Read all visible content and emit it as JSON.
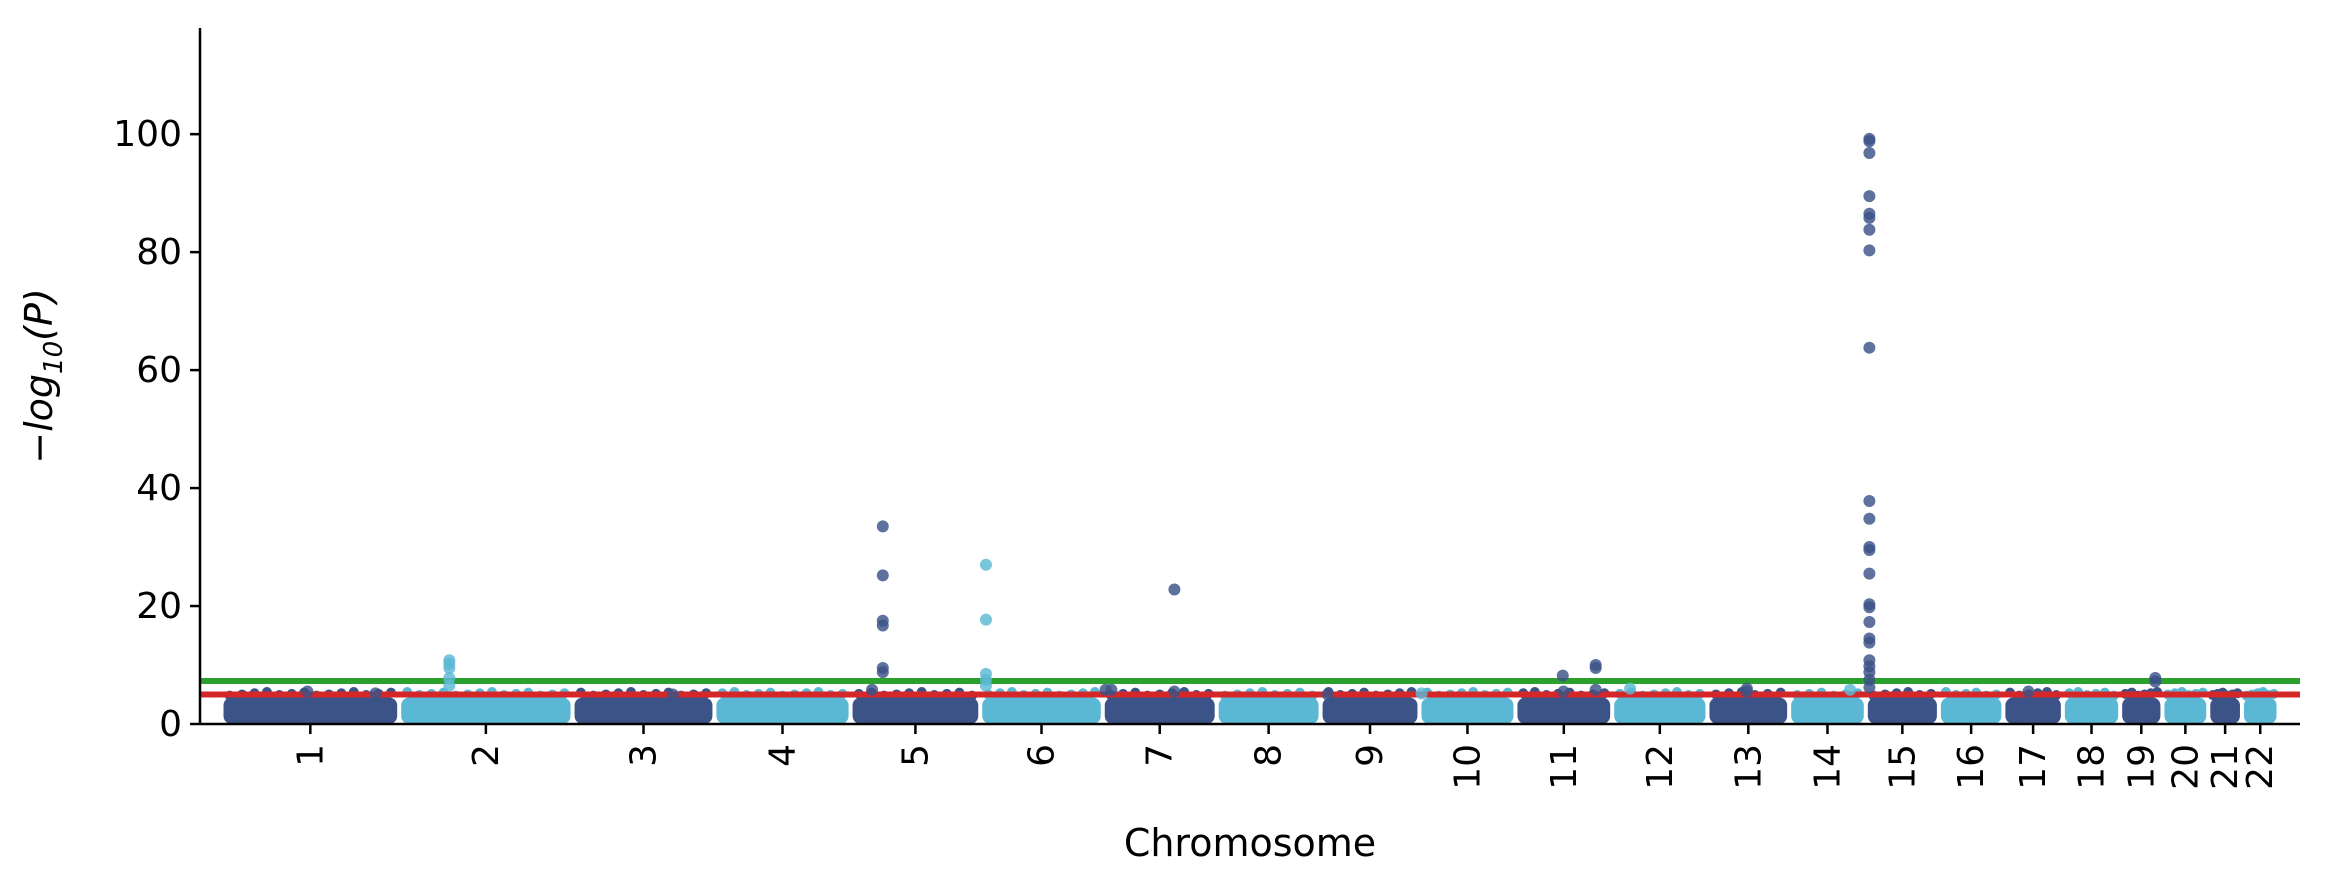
{
  "chart_data": {
    "type": "scatter",
    "subtype": "manhattan",
    "xlabel": "Chromosome",
    "ylabel": "−log10(P)",
    "ylim": [
      0,
      118
    ],
    "yticks": [
      0,
      20,
      40,
      60,
      80,
      100
    ],
    "grid": false,
    "legend": "none",
    "colors": {
      "odd": "#3b5387",
      "even": "#5bb8d4",
      "genome_wide_line": "#2ca02c",
      "suggestive_line": "#d62728",
      "axis": "#000000"
    },
    "thresholds": [
      {
        "label": "genome-wide",
        "value": 7.3
      },
      {
        "label": "suggestive",
        "value": 5.0
      }
    ],
    "chromosomes": [
      {
        "name": "1",
        "start": 0,
        "end": 248
      },
      {
        "name": "2",
        "start": 248,
        "end": 490
      },
      {
        "name": "3",
        "start": 490,
        "end": 688
      },
      {
        "name": "4",
        "start": 688,
        "end": 878
      },
      {
        "name": "5",
        "start": 878,
        "end": 1059
      },
      {
        "name": "6",
        "start": 1059,
        "end": 1230
      },
      {
        "name": "7",
        "start": 1230,
        "end": 1389
      },
      {
        "name": "8",
        "start": 1389,
        "end": 1534
      },
      {
        "name": "9",
        "start": 1534,
        "end": 1672
      },
      {
        "name": "10",
        "start": 1672,
        "end": 1806
      },
      {
        "name": "11",
        "start": 1806,
        "end": 1941
      },
      {
        "name": "12",
        "start": 1941,
        "end": 2074
      },
      {
        "name": "13",
        "start": 2074,
        "end": 2188
      },
      {
        "name": "14",
        "start": 2188,
        "end": 2295
      },
      {
        "name": "15",
        "start": 2295,
        "end": 2397
      },
      {
        "name": "16",
        "start": 2397,
        "end": 2487
      },
      {
        "name": "17",
        "start": 2487,
        "end": 2570
      },
      {
        "name": "18",
        "start": 2570,
        "end": 2650
      },
      {
        "name": "19",
        "start": 2650,
        "end": 2709
      },
      {
        "name": "20",
        "start": 2709,
        "end": 2773
      },
      {
        "name": "21",
        "start": 2773,
        "end": 2820
      },
      {
        "name": "22",
        "start": 2820,
        "end": 2871
      }
    ],
    "background_band_max": 4.5,
    "points": [
      {
        "chr": "1",
        "pos": 120,
        "y": 5.5
      },
      {
        "chr": "1",
        "pos": 215,
        "y": 5.2
      },
      {
        "chr": "2",
        "pos": 70,
        "y": 10.8
      },
      {
        "chr": "2",
        "pos": 70,
        "y": 10.2
      },
      {
        "chr": "2",
        "pos": 70,
        "y": 9.5
      },
      {
        "chr": "2",
        "pos": 70,
        "y": 7.8
      },
      {
        "chr": "2",
        "pos": 70,
        "y": 6.5
      },
      {
        "chr": "3",
        "pos": 140,
        "y": 5.0
      },
      {
        "chr": "5",
        "pos": 30,
        "y": 5.8
      },
      {
        "chr": "5",
        "pos": 45,
        "y": 33.5
      },
      {
        "chr": "5",
        "pos": 45,
        "y": 25.2
      },
      {
        "chr": "5",
        "pos": 45,
        "y": 17.5
      },
      {
        "chr": "5",
        "pos": 45,
        "y": 16.7
      },
      {
        "chr": "5",
        "pos": 45,
        "y": 9.5
      },
      {
        "chr": "5",
        "pos": 45,
        "y": 8.8
      },
      {
        "chr": "6",
        "pos": 8,
        "y": 27.0
      },
      {
        "chr": "6",
        "pos": 8,
        "y": 17.7
      },
      {
        "chr": "6",
        "pos": 8,
        "y": 8.5
      },
      {
        "chr": "6",
        "pos": 8,
        "y": 7.5
      },
      {
        "chr": "6",
        "pos": 8,
        "y": 6.5
      },
      {
        "chr": "7",
        "pos": 4,
        "y": 5.8
      },
      {
        "chr": "7",
        "pos": 12,
        "y": 5.8
      },
      {
        "chr": "7",
        "pos": 100,
        "y": 22.8
      },
      {
        "chr": "7",
        "pos": 100,
        "y": 5.5
      },
      {
        "chr": "9",
        "pos": 10,
        "y": 5.0
      },
      {
        "chr": "10",
        "pos": 3,
        "y": 5.2
      },
      {
        "chr": "11",
        "pos": 66,
        "y": 8.2
      },
      {
        "chr": "11",
        "pos": 67,
        "y": 5.5
      },
      {
        "chr": "11",
        "pos": 112,
        "y": 10.0
      },
      {
        "chr": "11",
        "pos": 112,
        "y": 9.5
      },
      {
        "chr": "11",
        "pos": 112,
        "y": 5.8
      },
      {
        "chr": "12",
        "pos": 25,
        "y": 6.0
      },
      {
        "chr": "13",
        "pos": 55,
        "y": 6.0
      },
      {
        "chr": "13",
        "pos": 55,
        "y": 5.5
      },
      {
        "chr": "14",
        "pos": 85,
        "y": 5.8
      },
      {
        "chr": "15",
        "pos": 5,
        "y": 99.2
      },
      {
        "chr": "15",
        "pos": 5,
        "y": 98.8
      },
      {
        "chr": "15",
        "pos": 5,
        "y": 96.8
      },
      {
        "chr": "15",
        "pos": 5,
        "y": 89.5
      },
      {
        "chr": "15",
        "pos": 5,
        "y": 86.5
      },
      {
        "chr": "15",
        "pos": 5,
        "y": 85.8
      },
      {
        "chr": "15",
        "pos": 5,
        "y": 83.8
      },
      {
        "chr": "15",
        "pos": 5,
        "y": 80.3
      },
      {
        "chr": "15",
        "pos": 5,
        "y": 63.8
      },
      {
        "chr": "15",
        "pos": 5,
        "y": 37.8
      },
      {
        "chr": "15",
        "pos": 5,
        "y": 34.8
      },
      {
        "chr": "15",
        "pos": 5,
        "y": 30.0
      },
      {
        "chr": "15",
        "pos": 5,
        "y": 29.5
      },
      {
        "chr": "15",
        "pos": 5,
        "y": 25.5
      },
      {
        "chr": "15",
        "pos": 5,
        "y": 20.3
      },
      {
        "chr": "15",
        "pos": 5,
        "y": 19.8
      },
      {
        "chr": "15",
        "pos": 5,
        "y": 17.3
      },
      {
        "chr": "15",
        "pos": 5,
        "y": 14.5
      },
      {
        "chr": "15",
        "pos": 5,
        "y": 13.8
      },
      {
        "chr": "15",
        "pos": 5,
        "y": 10.8
      },
      {
        "chr": "15",
        "pos": 5,
        "y": 9.8
      },
      {
        "chr": "15",
        "pos": 5,
        "y": 8.8
      },
      {
        "chr": "15",
        "pos": 5,
        "y": 7.5
      },
      {
        "chr": "15",
        "pos": 5,
        "y": 6.2
      },
      {
        "chr": "17",
        "pos": 35,
        "y": 5.5
      },
      {
        "chr": "19",
        "pos": 49,
        "y": 7.8
      },
      {
        "chr": "19",
        "pos": 49,
        "y": 7.2
      }
    ]
  }
}
